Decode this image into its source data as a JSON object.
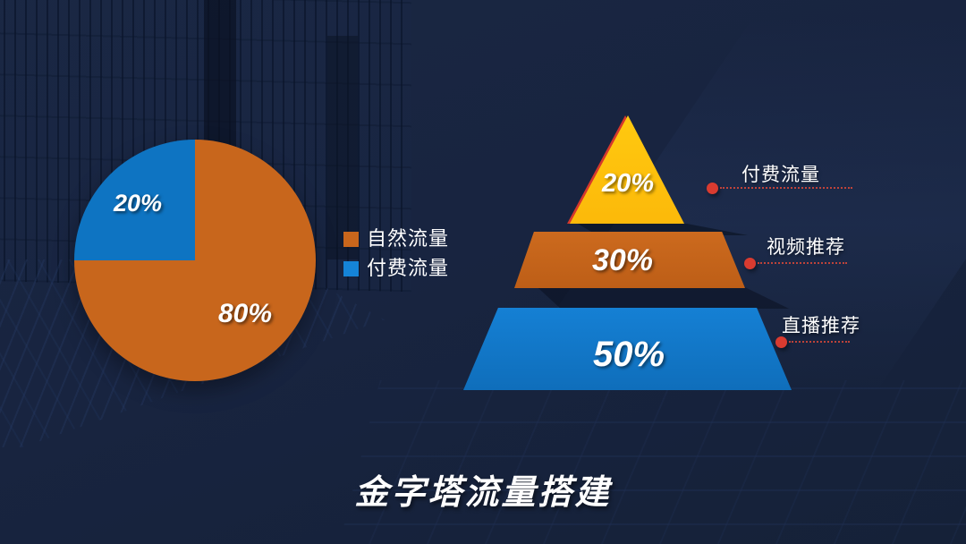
{
  "slide": {
    "title": "金字塔流量搭建"
  },
  "pie": {
    "slices": [
      {
        "label": "80%",
        "name": "自然流量",
        "color": "#C8661C"
      },
      {
        "label": "20%",
        "name": "付费流量",
        "color": "#0E74C2"
      }
    ]
  },
  "legend": {
    "items": [
      {
        "label": "自然流量",
        "color": "#C8661C"
      },
      {
        "label": "付费流量",
        "color": "#1584D8"
      }
    ]
  },
  "pyramid": {
    "levels": [
      {
        "value": "20%",
        "callout": "付费流量",
        "color": "#FFC40D"
      },
      {
        "value": "30%",
        "callout": "视频推荐",
        "color": "#C8661C"
      },
      {
        "value": "50%",
        "callout": "直播推荐",
        "color": "#1379CA"
      }
    ]
  },
  "colors": {
    "background": "#182440",
    "orange": "#C8661C",
    "pie_blue": "#0E74C2",
    "pyramid_blue": "#1379CA",
    "yellow": "#FFC40D",
    "callout_red": "#D93B30",
    "text": "#FFFFFF"
  },
  "chart_data": [
    {
      "type": "pie",
      "title": "",
      "labels": [
        "自然流量",
        "付费流量"
      ],
      "values": [
        80,
        20
      ],
      "data_labels": [
        "80%",
        "20%"
      ],
      "colors": [
        "#C8661C",
        "#0E74C2"
      ],
      "legend_position": "right",
      "start_angle_deg": 270,
      "notes": "blue 20% slice occupies upper-left quadrant; labels drawn in bold italic white inside slices"
    },
    {
      "type": "pyramid",
      "title": "金字塔流量搭建",
      "levels": [
        {
          "label": "付费流量",
          "value_pct": 20,
          "color": "#FFC40D"
        },
        {
          "label": "视频推荐",
          "value_pct": 30,
          "color": "#C8661C"
        },
        {
          "label": "直播推荐",
          "value_pct": 50,
          "color": "#1379CA"
        }
      ],
      "annotation_style": "red dot with dotted leader line to each level label on the right"
    }
  ]
}
